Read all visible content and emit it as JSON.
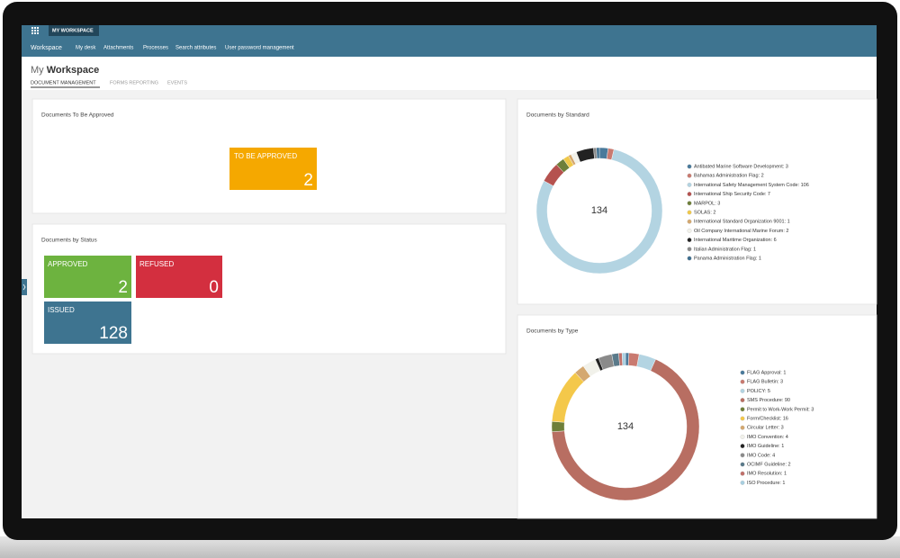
{
  "nav": {
    "app_badge": "MY WORKSPACE",
    "home": "Workspace",
    "links": [
      "My desk",
      "Attachments",
      "Processes",
      "Search attributes",
      "User password management"
    ]
  },
  "header": {
    "title_light": "My",
    "title_bold": "Workspace",
    "tabs": [
      "DOCUMENT MANAGEMENT",
      "FORMS REPORTING",
      "EVENTS"
    ]
  },
  "approval_card": {
    "title": "Documents To Be Approved",
    "tiles": [
      {
        "label": "TO BE APPROVED",
        "count": 2
      }
    ]
  },
  "status_card": {
    "title": "Documents by Status",
    "tiles": [
      {
        "label": "APPROVED",
        "count": 2
      },
      {
        "label": "REFUSED",
        "count": 0
      },
      {
        "label": "ISSUED",
        "count": 128
      }
    ]
  },
  "chart_data": [
    {
      "type": "donut",
      "title": "Documents by Standard",
      "center_label": 134,
      "categories": [
        "Antibated Marine Software Development: 3",
        "Bahamas Administration Flag: 2",
        "International Safety Management System Code: 106",
        "International Ship Security Code: 7",
        "MARPOL: 3",
        "SOLAS: 2",
        "International Standard Organization 9001: 1",
        "Oil Company International Marine Forum: 2",
        "International Maritime Organization: 6",
        "Italian Administration Flag: 1",
        "Panama Administration Flag: 1"
      ],
      "values": [
        3,
        2,
        106,
        7,
        3,
        2,
        1,
        2,
        6,
        1,
        1
      ],
      "colors": [
        "#4a7a9b",
        "#c97a70",
        "#b3d4e2",
        "#b5524f",
        "#6e7f3a",
        "#f0c84a",
        "#d4a870",
        "#f1f1ea",
        "#222222",
        "#8a8a8a",
        "#3f6f8f"
      ]
    },
    {
      "type": "donut",
      "title": "Documents by Type",
      "center_label": 134,
      "categories": [
        "FLAG Approval: 1",
        "FLAG Bulletin: 3",
        "POLICY: 5",
        "SMS Procedure: 90",
        "Permit to Work-Work Permit: 3",
        "Form/Checklist: 16",
        "Circular Letter: 3",
        "IMO Convention: 4",
        "IMO Guideline: 1",
        "IMO Code: 4",
        "OCIMF Guideline: 2",
        "IMO Resolution: 1",
        "ISO Procedure: 1"
      ],
      "values": [
        1,
        3,
        5,
        90,
        3,
        16,
        3,
        4,
        1,
        4,
        2,
        1,
        1
      ],
      "colors": [
        "#4a7a9b",
        "#c97a70",
        "#b3d4e2",
        "#b86e62",
        "#6e7f3a",
        "#f4c84a",
        "#d4a870",
        "#f1f1ea",
        "#222222",
        "#8a8a8a",
        "#5a7a8a",
        "#c0706a",
        "#a8cfe0"
      ]
    }
  ]
}
